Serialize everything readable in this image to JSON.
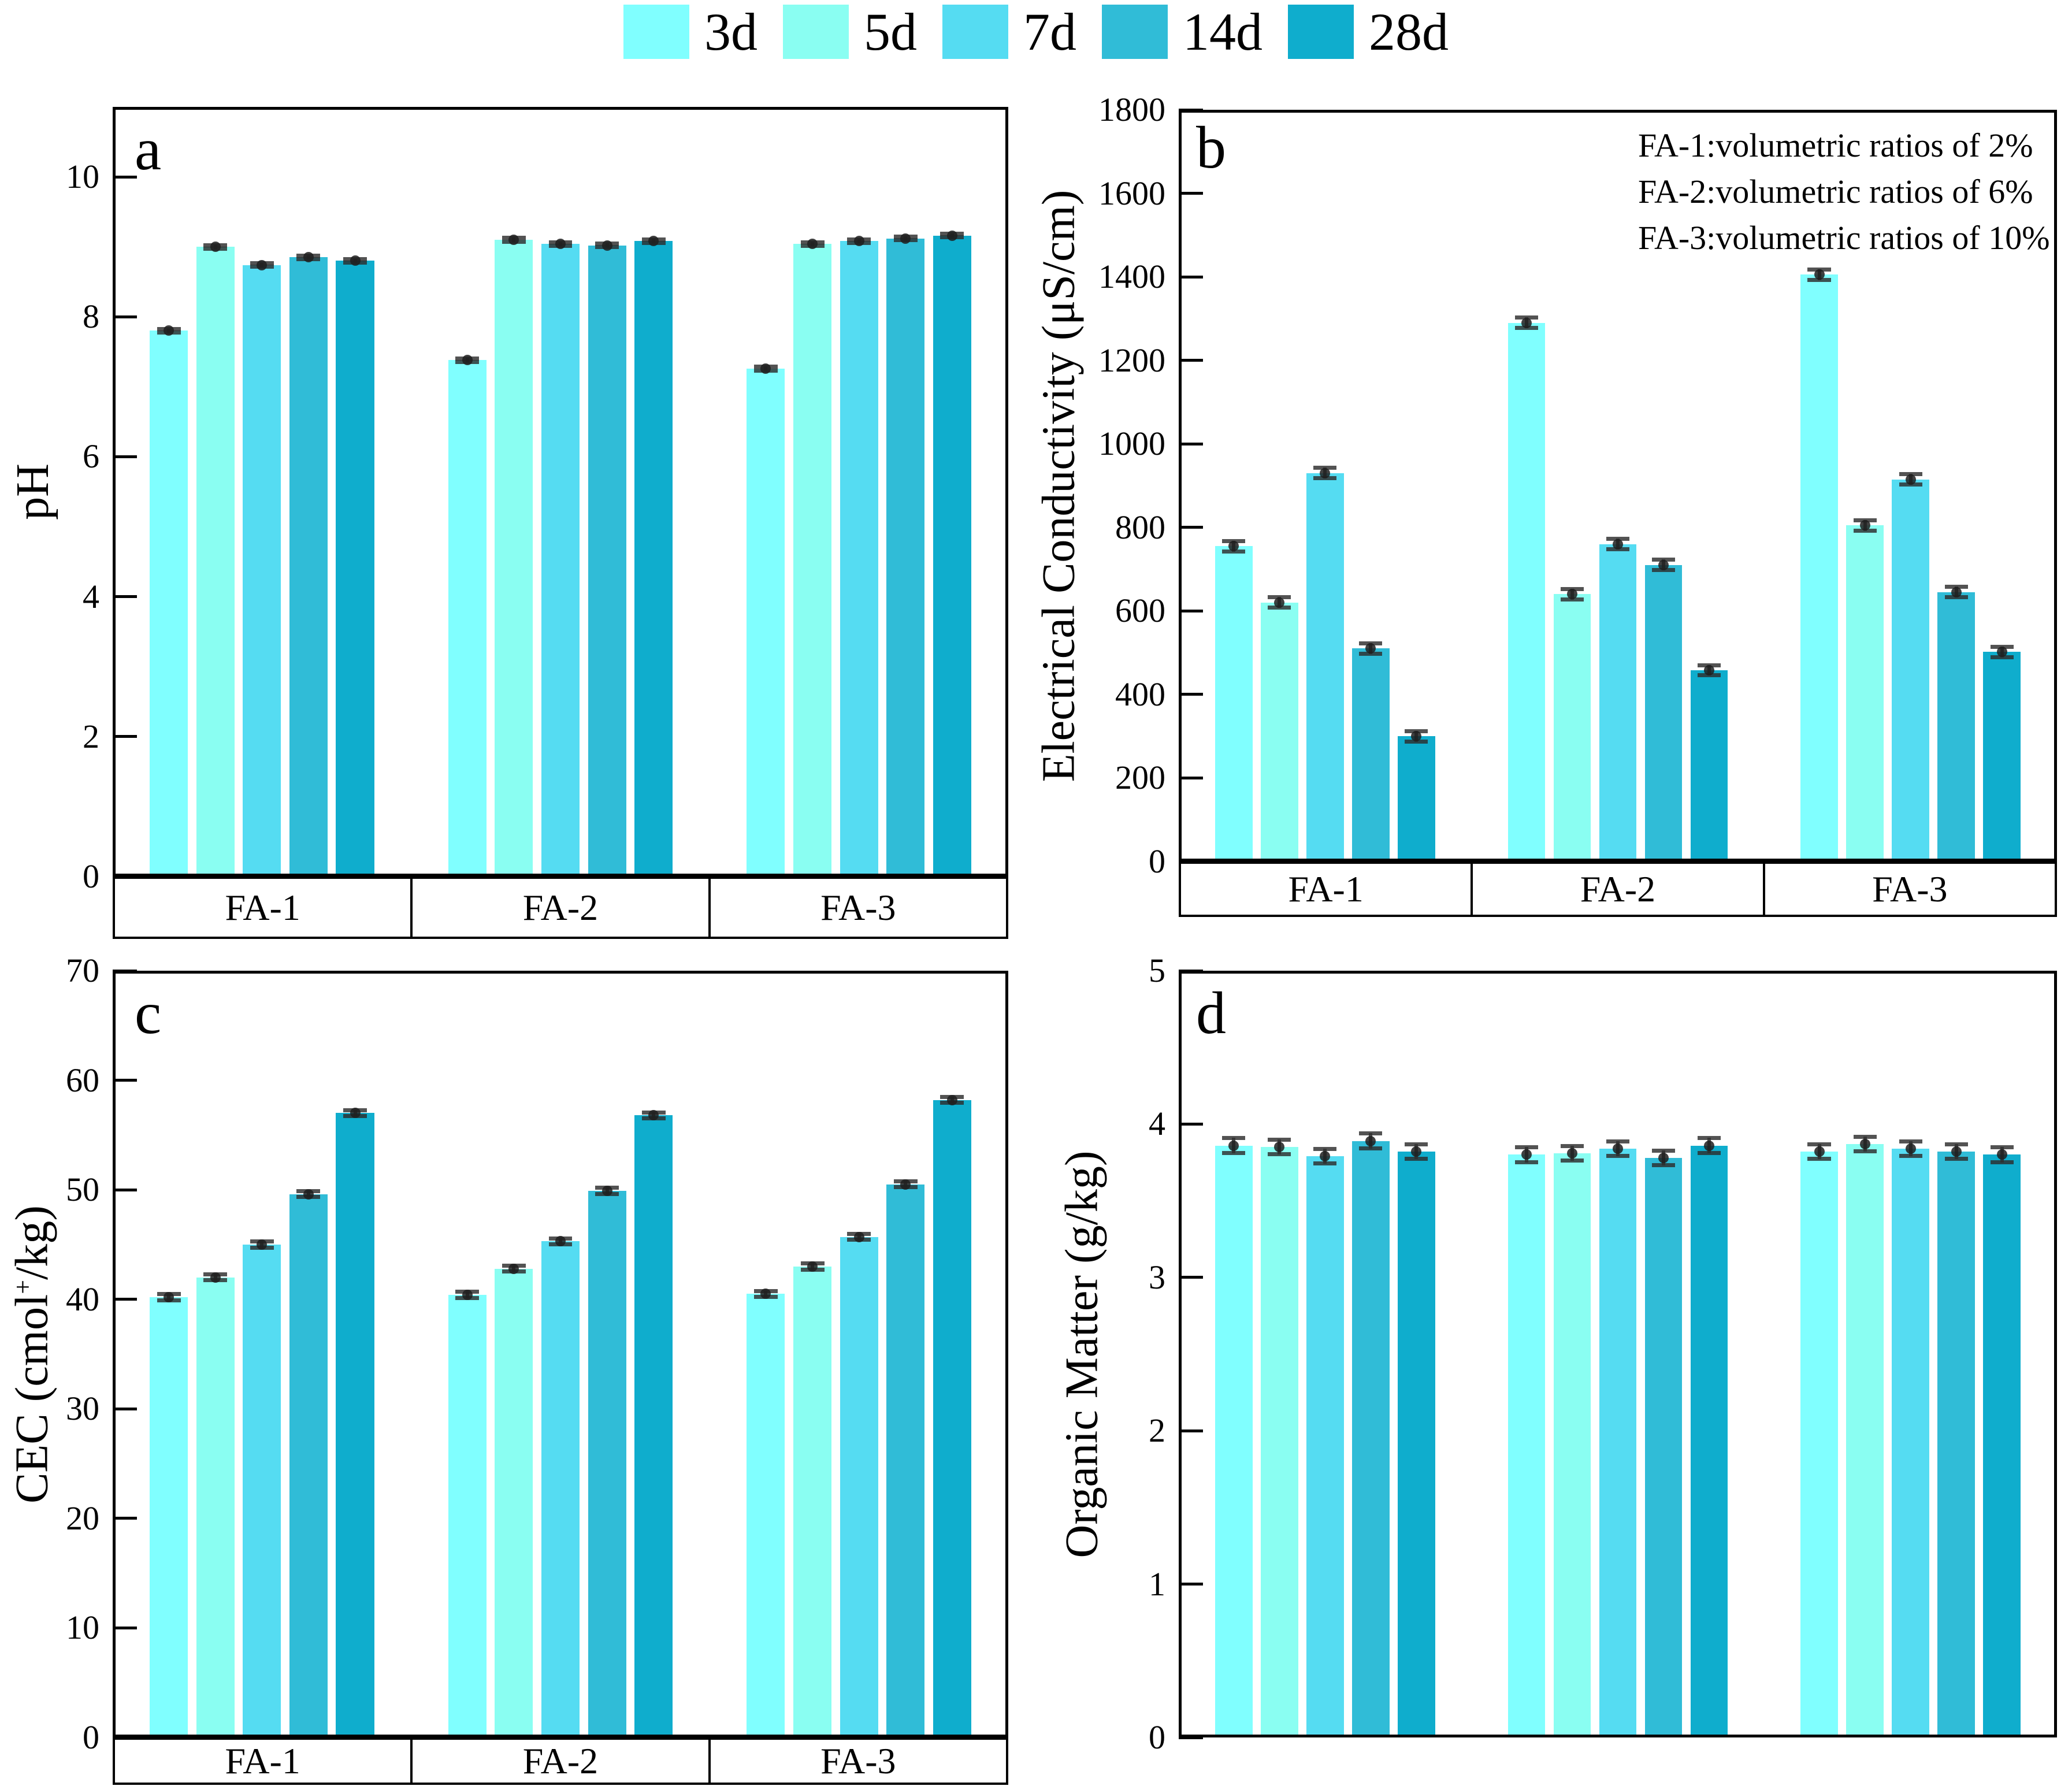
{
  "legend": {
    "items": [
      {
        "label": "3d",
        "color": "#80FFFF"
      },
      {
        "label": "5d",
        "color": "#8AFEF2"
      },
      {
        "label": "7d",
        "color": "#55DCF2"
      },
      {
        "label": "14d",
        "color": "#30BCD7"
      },
      {
        "label": "28d",
        "color": "#0FADCD"
      }
    ]
  },
  "annotation": {
    "lines": [
      "FA-1:volumetric ratios of 2%",
      "FA-2:volumetric ratios of 6%",
      "FA-3:volumetric ratios of 10%"
    ]
  },
  "groups": [
    "FA-1",
    "FA-2",
    "FA-3"
  ],
  "chart_data": [
    {
      "panel": "a",
      "type": "bar",
      "title": "",
      "ylabel": "pH",
      "xlabel": "",
      "categories": [
        "FA-1",
        "FA-2",
        "FA-3"
      ],
      "series": [
        {
          "name": "3d",
          "values": [
            7.8,
            7.38,
            7.26
          ]
        },
        {
          "name": "5d",
          "values": [
            9.0,
            9.1,
            9.04
          ]
        },
        {
          "name": "7d",
          "values": [
            8.74,
            9.04,
            9.08
          ]
        },
        {
          "name": "14d",
          "values": [
            8.85,
            9.02,
            9.12
          ]
        },
        {
          "name": "28d",
          "values": [
            8.8,
            9.08,
            9.16
          ]
        }
      ],
      "yerr": 0.03,
      "ylim": [
        0,
        11
      ],
      "ytick_step": 2,
      "ytick_max": 10,
      "grid": false,
      "group_labels_visible": true
    },
    {
      "panel": "b",
      "type": "bar",
      "title": "",
      "ylabel": "Electrical Conductivity (μS/cm)",
      "xlabel": "",
      "categories": [
        "FA-1",
        "FA-2",
        "FA-3"
      ],
      "series": [
        {
          "name": "3d",
          "values": [
            755,
            1290,
            1405
          ]
        },
        {
          "name": "5d",
          "values": [
            620,
            640,
            805
          ]
        },
        {
          "name": "7d",
          "values": [
            930,
            760,
            915
          ]
        },
        {
          "name": "14d",
          "values": [
            510,
            710,
            645
          ]
        },
        {
          "name": "28d",
          "values": [
            300,
            458,
            502
          ]
        }
      ],
      "yerr": 13,
      "ylim": [
        0,
        1800
      ],
      "ytick_step": 200,
      "ytick_max": 1800,
      "grid": false,
      "group_labels_visible": true
    },
    {
      "panel": "c",
      "type": "bar",
      "title": "",
      "ylabel": "CEC (cmol+/kg)",
      "ylabel_parts": {
        "pre": "CEC (cmol",
        "sup": "+",
        "post": "/kg)"
      },
      "xlabel": "",
      "categories": [
        "FA-1",
        "FA-2",
        "FA-3"
      ],
      "series": [
        {
          "name": "3d",
          "values": [
            40.2,
            40.4,
            40.5
          ]
        },
        {
          "name": "5d",
          "values": [
            42.0,
            42.8,
            43.0
          ]
        },
        {
          "name": "7d",
          "values": [
            45.0,
            45.3,
            45.7
          ]
        },
        {
          "name": "14d",
          "values": [
            49.6,
            49.9,
            50.5
          ]
        },
        {
          "name": "28d",
          "values": [
            57.0,
            56.8,
            58.2
          ]
        }
      ],
      "yerr": 0.3,
      "ylim": [
        0,
        70
      ],
      "ytick_step": 10,
      "ytick_max": 70,
      "grid": false,
      "group_labels_visible": true
    },
    {
      "panel": "d",
      "type": "bar",
      "title": "",
      "ylabel": "Organic Matter (g/kg)",
      "xlabel": "",
      "categories": [
        "FA-1",
        "FA-2",
        "FA-3"
      ],
      "series": [
        {
          "name": "3d",
          "values": [
            3.86,
            3.8,
            3.82
          ]
        },
        {
          "name": "5d",
          "values": [
            3.85,
            3.81,
            3.87
          ]
        },
        {
          "name": "7d",
          "values": [
            3.79,
            3.84,
            3.84
          ]
        },
        {
          "name": "14d",
          "values": [
            3.89,
            3.78,
            3.82
          ]
        },
        {
          "name": "28d",
          "values": [
            3.82,
            3.86,
            3.8
          ]
        }
      ],
      "yerr": 0.05,
      "ylim": [
        0,
        5
      ],
      "ytick_step": 1,
      "ytick_max": 5,
      "grid": false,
      "group_labels_visible": false
    }
  ]
}
